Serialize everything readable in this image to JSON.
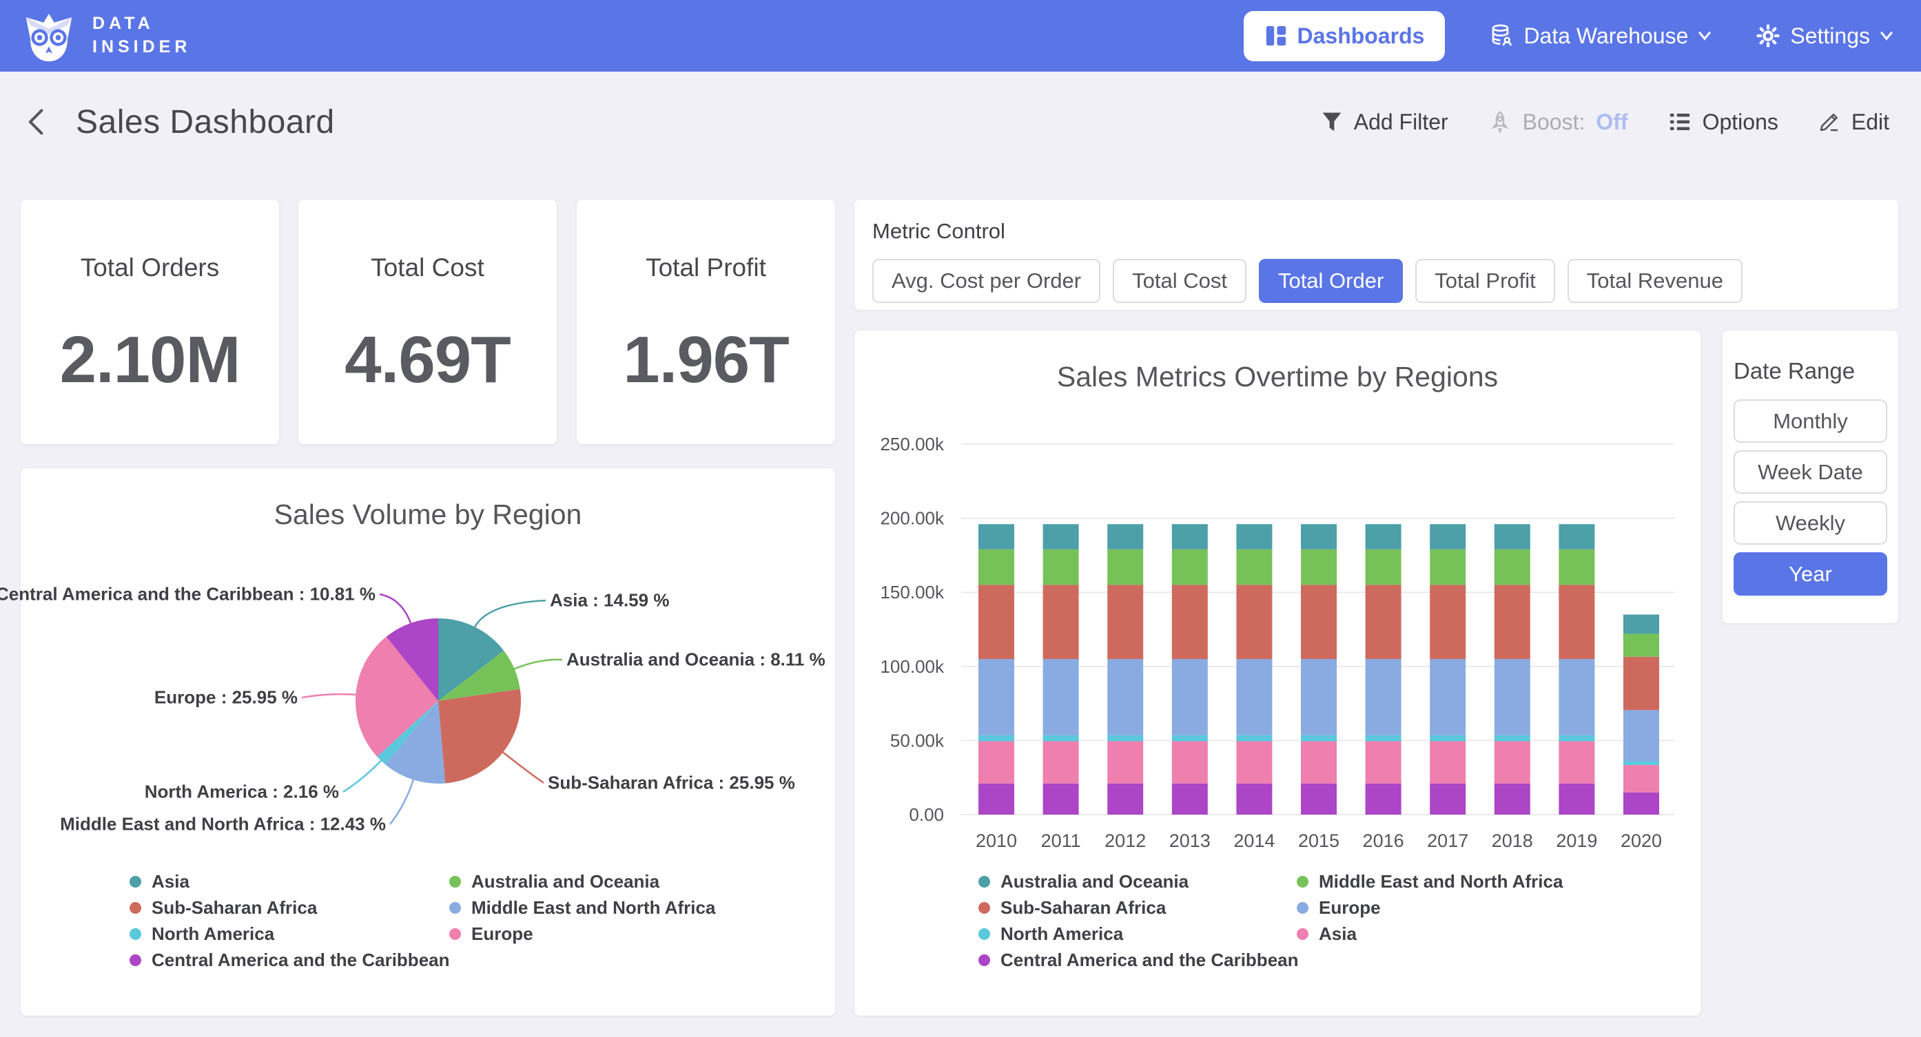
{
  "topnav": {
    "brand": {
      "line1": "DATA",
      "line2": "INSIDER"
    },
    "items": [
      {
        "label": "Dashboards",
        "active": true
      },
      {
        "label": "Data Warehouse",
        "active": false
      },
      {
        "label": "Settings",
        "active": false
      }
    ]
  },
  "header": {
    "title": "Sales Dashboard",
    "actions": {
      "add_filter": "Add Filter",
      "boost_label": "Boost:",
      "boost_value": "Off",
      "options": "Options",
      "edit": "Edit"
    }
  },
  "kpis": [
    {
      "label": "Total Orders",
      "value": "2.10M"
    },
    {
      "label": "Total Cost",
      "value": "4.69T"
    },
    {
      "label": "Total Profit",
      "value": "1.96T"
    }
  ],
  "metric_control": {
    "title": "Metric Control",
    "options": [
      {
        "label": "Avg. Cost per Order",
        "selected": false
      },
      {
        "label": "Total Cost",
        "selected": false
      },
      {
        "label": "Total Order",
        "selected": true
      },
      {
        "label": "Total Profit",
        "selected": false
      },
      {
        "label": "Total Revenue",
        "selected": false
      }
    ]
  },
  "date_range": {
    "title": "Date Range",
    "options": [
      {
        "label": "Monthly",
        "selected": false
      },
      {
        "label": "Week Date",
        "selected": false
      },
      {
        "label": "Weekly",
        "selected": false
      },
      {
        "label": "Year",
        "selected": true
      }
    ]
  },
  "colors": {
    "accent_blue": "#5A75E6",
    "teal": "#4D9FA8",
    "green": "#77C159",
    "salmon": "#CE6A5D",
    "periwinkle": "#89ABE2",
    "cyan": "#5BC8DC",
    "pink": "#EF7FAE",
    "purple": "#AC45C6"
  },
  "chart_data": [
    {
      "type": "pie",
      "title": "Sales Volume by Region",
      "slices": [
        {
          "label": "Asia",
          "value": 14.59,
          "color": "#4D9FA8",
          "callout": "Asia : 14.59 %"
        },
        {
          "label": "Australia and Oceania",
          "value": 8.11,
          "color": "#77C159",
          "callout": "Australia and Oceania : 8.11 %"
        },
        {
          "label": "Sub-Saharan Africa",
          "value": 25.95,
          "color": "#CE6A5D",
          "callout": "Sub-Saharan Africa : 25.95 %"
        },
        {
          "label": "Middle East and North Africa",
          "value": 12.43,
          "color": "#89ABE2",
          "callout": "Middle East and North Africa : 12.43 %"
        },
        {
          "label": "North America",
          "value": 2.16,
          "color": "#5BC8DC",
          "callout": "North America : 2.16 %"
        },
        {
          "label": "Europe",
          "value": 25.95,
          "color": "#EF7FAE",
          "callout": "Europe : 25.95 %"
        },
        {
          "label": "Central America and the Caribbean",
          "value": 10.81,
          "color": "#AC45C6",
          "callout": "Central America and the Caribbean : 10.81 %"
        }
      ],
      "legend": {
        "col1": [
          "Asia",
          "Sub-Saharan Africa",
          "North America",
          "Central America and the Caribbean"
        ],
        "col2": [
          "Australia and Oceania",
          "Middle East and North Africa",
          "Europe"
        ]
      }
    },
    {
      "type": "bar",
      "stacked": true,
      "title": "Sales Metrics Overtime by Regions",
      "categories": [
        "2010",
        "2011",
        "2012",
        "2013",
        "2014",
        "2015",
        "2016",
        "2017",
        "2018",
        "2019",
        "2020"
      ],
      "y_ticks": [
        "250.00k",
        "200.00k",
        "150.00k",
        "100.00k",
        "50.00k",
        "0.00"
      ],
      "ylim": [
        0,
        250000
      ],
      "xlabel": "",
      "ylabel": "",
      "series": [
        {
          "name": "Central America and the Caribbean",
          "color": "#AC45C6",
          "values": [
            21000,
            21000,
            21000,
            21000,
            21000,
            21000,
            21000,
            21000,
            21000,
            21000,
            15000
          ]
        },
        {
          "name": "Asia",
          "color": "#EF7FAE",
          "values": [
            28500,
            28500,
            28500,
            28500,
            28500,
            28500,
            28500,
            28500,
            28500,
            28500,
            18500
          ]
        },
        {
          "name": "North America",
          "color": "#5BC8DC",
          "values": [
            4000,
            4000,
            4000,
            4000,
            4000,
            4000,
            4000,
            4000,
            4000,
            4000,
            2500
          ]
        },
        {
          "name": "Europe",
          "color": "#89ABE2",
          "values": [
            51500,
            51500,
            51500,
            51500,
            51500,
            51500,
            51500,
            51500,
            51500,
            51500,
            34500
          ]
        },
        {
          "name": "Sub-Saharan Africa",
          "color": "#CE6A5D",
          "values": [
            50000,
            50000,
            50000,
            50000,
            50000,
            50000,
            50000,
            50000,
            50000,
            50000,
            36000
          ]
        },
        {
          "name": "Middle East and North Africa",
          "color": "#77C159",
          "values": [
            24000,
            24000,
            24000,
            24000,
            24000,
            24000,
            24000,
            24000,
            24000,
            24000,
            15500
          ]
        },
        {
          "name": "Australia and Oceania",
          "color": "#4D9FA8",
          "values": [
            17000,
            17000,
            17000,
            17000,
            17000,
            17000,
            17000,
            17000,
            17000,
            17000,
            13000
          ]
        }
      ],
      "legend": {
        "col1": [
          "Australia and Oceania",
          "Sub-Saharan Africa",
          "North America",
          "Central America and the Caribbean"
        ],
        "col2": [
          "Middle East and North Africa",
          "Europe",
          "Asia"
        ]
      }
    }
  ]
}
